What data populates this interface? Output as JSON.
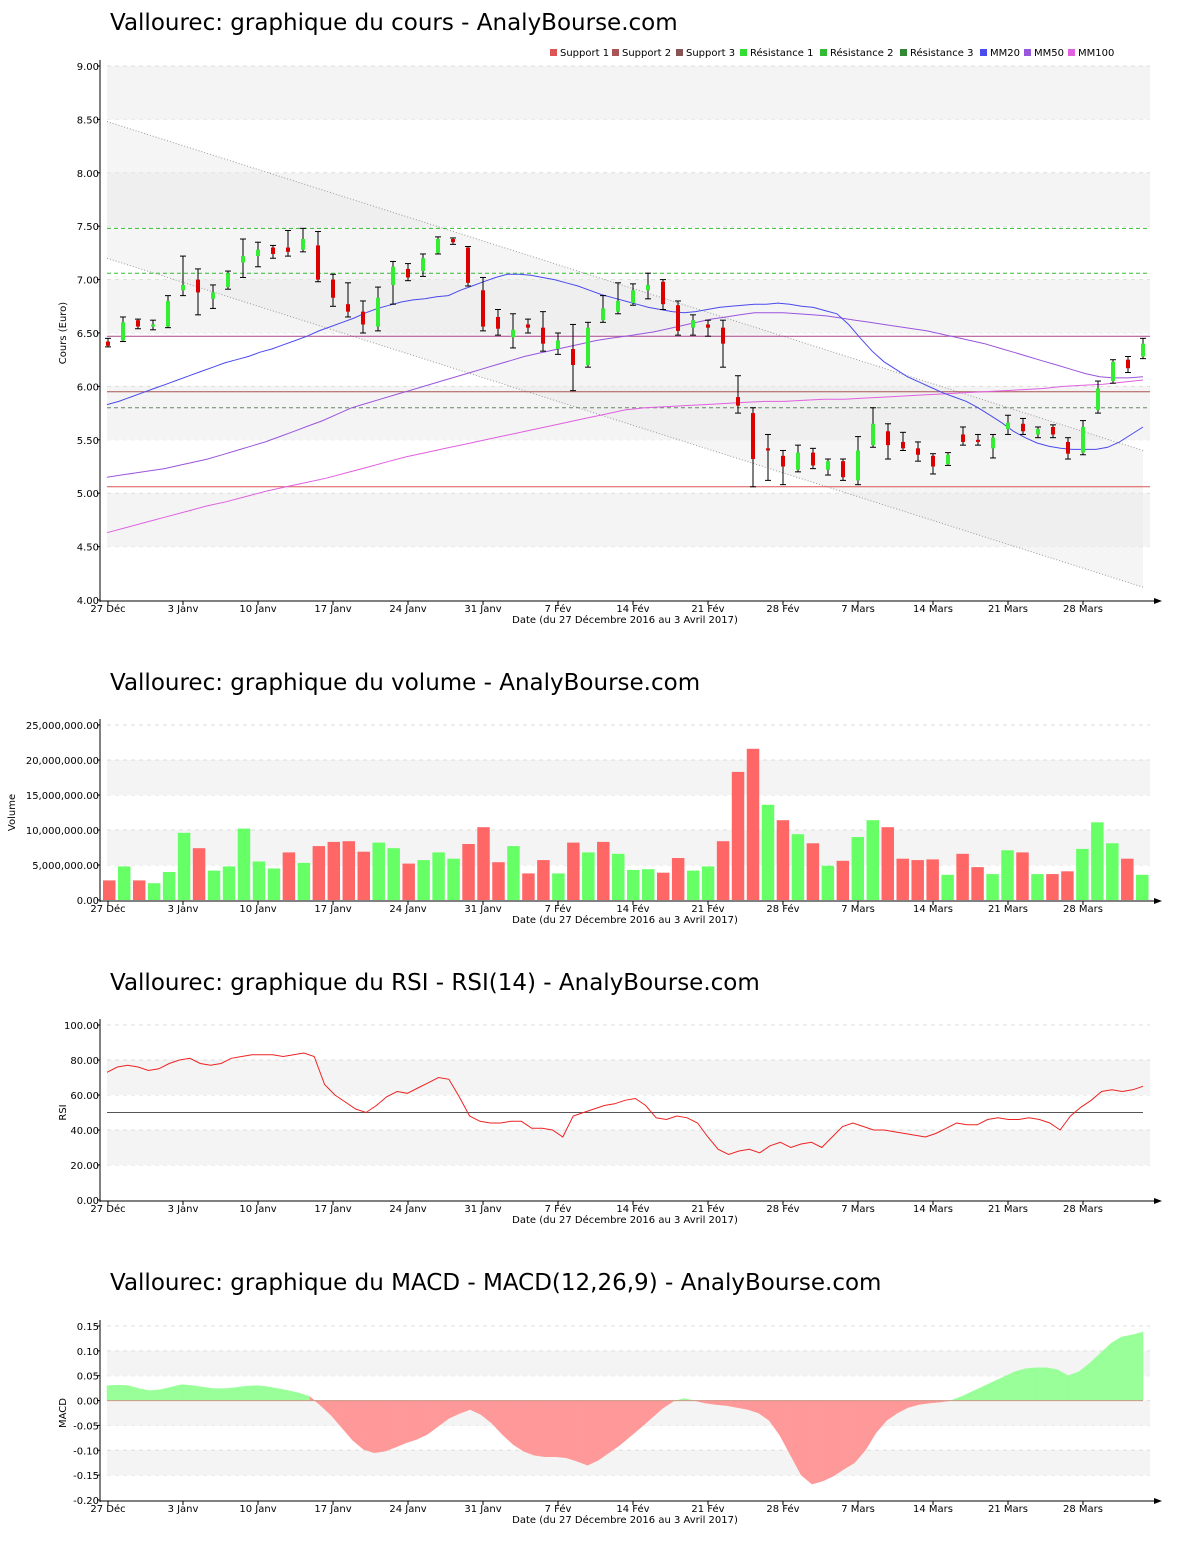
{
  "titles": {
    "price": "Vallourec: graphique du cours - AnalyBourse.com",
    "volume": "Vallourec: graphique du volume - AnalyBourse.com",
    "rsi": "Vallourec: graphique du RSI - RSI(14) - AnalyBourse.com",
    "macd": "Vallourec: graphique du MACD - MACD(12,26,9) - AnalyBourse.com"
  },
  "xlabel": "Date (du 27 Décembre 2016 au 3 Avril 2017)",
  "x_ticks": [
    "27 Déc",
    "3 Janv",
    "10 Janv",
    "17 Janv",
    "24 Janv",
    "31 Janv",
    "7 Fév",
    "14 Fév",
    "21 Fév",
    "28 Fév",
    "7 Mars",
    "14 Mars",
    "21 Mars",
    "28 Mars"
  ],
  "colors": {
    "up": "#33ee33",
    "down": "#dd0000",
    "vol_up": "#66ff66",
    "vol_down": "#ff6666",
    "mm20": "#4a4aee",
    "mm50": "#9a55dd",
    "mm100": "#e060e0"
  },
  "chart_data": [
    {
      "type": "candlestick",
      "title": "Vallourec: graphique du cours - AnalyBourse.com",
      "ylabel": "Cours (Euro)",
      "ylim": [
        4.0,
        9.0
      ],
      "y_ticks": [
        "4.00",
        "4.50",
        "5.00",
        "5.50",
        "6.00",
        "6.50",
        "7.00",
        "7.50",
        "8.00",
        "8.50",
        "9.00"
      ],
      "legend": [
        "Support 1",
        "Support 2",
        "Support 3",
        "Résistance 1",
        "Résistance 2",
        "Résistance 3",
        "MM20",
        "MM50",
        "MM100"
      ],
      "legend_colors": [
        "#dd5555",
        "#aa5555",
        "#885555",
        "#33dd33",
        "#33bb33",
        "#338833",
        "#4a4aee",
        "#9a55dd",
        "#e060e0"
      ],
      "legend_placement": "top-right",
      "levels": {
        "support1": 5.06,
        "support2": 5.95,
        "support3": 6.47,
        "resistance1": 7.48,
        "resistance2": 7.06,
        "resistance3": 5.8
      },
      "candles": [
        {
          "o": 6.42,
          "h": 6.45,
          "l": 6.37,
          "c": 6.38
        },
        {
          "o": 6.43,
          "h": 6.65,
          "l": 6.42,
          "c": 6.6
        },
        {
          "o": 6.62,
          "h": 6.63,
          "l": 6.54,
          "c": 6.56
        },
        {
          "o": 6.56,
          "h": 6.62,
          "l": 6.53,
          "c": 6.58
        },
        {
          "o": 6.56,
          "h": 6.85,
          "l": 6.55,
          "c": 6.8
        },
        {
          "o": 6.9,
          "h": 7.22,
          "l": 6.85,
          "c": 6.95
        },
        {
          "o": 7.0,
          "h": 7.1,
          "l": 6.67,
          "c": 6.88
        },
        {
          "o": 6.82,
          "h": 6.95,
          "l": 6.73,
          "c": 6.88
        },
        {
          "o": 6.93,
          "h": 7.08,
          "l": 6.91,
          "c": 7.06
        },
        {
          "o": 7.16,
          "h": 7.38,
          "l": 7.02,
          "c": 7.22
        },
        {
          "o": 7.22,
          "h": 7.35,
          "l": 7.12,
          "c": 7.28
        },
        {
          "o": 7.3,
          "h": 7.32,
          "l": 7.2,
          "c": 7.24
        },
        {
          "o": 7.3,
          "h": 7.46,
          "l": 7.22,
          "c": 7.26
        },
        {
          "o": 7.28,
          "h": 7.48,
          "l": 7.26,
          "c": 7.38
        },
        {
          "o": 7.32,
          "h": 7.45,
          "l": 6.98,
          "c": 7.0
        },
        {
          "o": 7.0,
          "h": 7.05,
          "l": 6.75,
          "c": 6.83
        },
        {
          "o": 6.77,
          "h": 6.97,
          "l": 6.65,
          "c": 6.7
        },
        {
          "o": 6.7,
          "h": 6.8,
          "l": 6.5,
          "c": 6.58
        },
        {
          "o": 6.56,
          "h": 6.93,
          "l": 6.52,
          "c": 6.83
        },
        {
          "o": 6.95,
          "h": 7.17,
          "l": 6.77,
          "c": 7.12
        },
        {
          "o": 7.1,
          "h": 7.15,
          "l": 6.99,
          "c": 7.02
        },
        {
          "o": 7.08,
          "h": 7.24,
          "l": 7.03,
          "c": 7.2
        },
        {
          "o": 7.25,
          "h": 7.4,
          "l": 7.24,
          "c": 7.38
        },
        {
          "o": 7.38,
          "h": 7.39,
          "l": 7.33,
          "c": 7.35
        },
        {
          "o": 7.3,
          "h": 7.31,
          "l": 6.94,
          "c": 6.97
        },
        {
          "o": 6.9,
          "h": 7.02,
          "l": 6.52,
          "c": 6.56
        },
        {
          "o": 6.65,
          "h": 6.72,
          "l": 6.48,
          "c": 6.54
        },
        {
          "o": 6.46,
          "h": 6.68,
          "l": 6.36,
          "c": 6.53
        },
        {
          "o": 6.58,
          "h": 6.63,
          "l": 6.5,
          "c": 6.55
        },
        {
          "o": 6.55,
          "h": 6.7,
          "l": 6.33,
          "c": 6.4
        },
        {
          "o": 6.35,
          "h": 6.5,
          "l": 6.3,
          "c": 6.43
        },
        {
          "o": 6.35,
          "h": 6.58,
          "l": 5.96,
          "c": 6.2
        },
        {
          "o": 6.2,
          "h": 6.6,
          "l": 6.18,
          "c": 6.55
        },
        {
          "o": 6.62,
          "h": 6.85,
          "l": 6.6,
          "c": 6.73
        },
        {
          "o": 6.7,
          "h": 6.97,
          "l": 6.68,
          "c": 6.8
        },
        {
          "o": 6.78,
          "h": 6.96,
          "l": 6.76,
          "c": 6.9
        },
        {
          "o": 6.9,
          "h": 7.06,
          "l": 6.82,
          "c": 6.95
        },
        {
          "o": 6.98,
          "h": 7.0,
          "l": 6.72,
          "c": 6.77
        },
        {
          "o": 6.76,
          "h": 6.8,
          "l": 6.48,
          "c": 6.52
        },
        {
          "o": 6.55,
          "h": 6.67,
          "l": 6.48,
          "c": 6.62
        },
        {
          "o": 6.58,
          "h": 6.62,
          "l": 6.47,
          "c": 6.55
        },
        {
          "o": 6.55,
          "h": 6.62,
          "l": 6.18,
          "c": 6.4
        },
        {
          "o": 5.9,
          "h": 6.1,
          "l": 5.75,
          "c": 5.82
        },
        {
          "o": 5.75,
          "h": 5.8,
          "l": 5.06,
          "c": 5.32
        },
        {
          "o": 5.42,
          "h": 5.55,
          "l": 5.12,
          "c": 5.4
        },
        {
          "o": 5.35,
          "h": 5.4,
          "l": 5.08,
          "c": 5.25
        },
        {
          "o": 5.22,
          "h": 5.45,
          "l": 5.2,
          "c": 5.38
        },
        {
          "o": 5.38,
          "h": 5.42,
          "l": 5.23,
          "c": 5.26
        },
        {
          "o": 5.22,
          "h": 5.32,
          "l": 5.17,
          "c": 5.3
        },
        {
          "o": 5.3,
          "h": 5.32,
          "l": 5.12,
          "c": 5.15
        },
        {
          "o": 5.12,
          "h": 5.53,
          "l": 5.08,
          "c": 5.4
        },
        {
          "o": 5.45,
          "h": 5.8,
          "l": 5.43,
          "c": 5.65
        },
        {
          "o": 5.58,
          "h": 5.65,
          "l": 5.32,
          "c": 5.45
        },
        {
          "o": 5.48,
          "h": 5.57,
          "l": 5.4,
          "c": 5.42
        },
        {
          "o": 5.42,
          "h": 5.48,
          "l": 5.3,
          "c": 5.36
        },
        {
          "o": 5.35,
          "h": 5.37,
          "l": 5.18,
          "c": 5.25
        },
        {
          "o": 5.27,
          "h": 5.38,
          "l": 5.26,
          "c": 5.36
        },
        {
          "o": 5.55,
          "h": 5.62,
          "l": 5.45,
          "c": 5.48
        },
        {
          "o": 5.5,
          "h": 5.55,
          "l": 5.45,
          "c": 5.48
        },
        {
          "o": 5.42,
          "h": 5.55,
          "l": 5.33,
          "c": 5.52
        },
        {
          "o": 5.6,
          "h": 5.73,
          "l": 5.55,
          "c": 5.66
        },
        {
          "o": 5.65,
          "h": 5.7,
          "l": 5.55,
          "c": 5.58
        },
        {
          "o": 5.55,
          "h": 5.62,
          "l": 5.52,
          "c": 5.6
        },
        {
          "o": 5.62,
          "h": 5.64,
          "l": 5.52,
          "c": 5.55
        },
        {
          "o": 5.48,
          "h": 5.52,
          "l": 5.32,
          "c": 5.37
        },
        {
          "o": 5.38,
          "h": 5.68,
          "l": 5.36,
          "c": 5.62
        },
        {
          "o": 5.78,
          "h": 6.05,
          "l": 5.75,
          "c": 5.98
        },
        {
          "o": 6.05,
          "h": 6.25,
          "l": 6.03,
          "c": 6.23
        },
        {
          "o": 6.25,
          "h": 6.28,
          "l": 6.13,
          "c": 6.17
        },
        {
          "o": 6.28,
          "h": 6.45,
          "l": 6.26,
          "c": 6.4
        }
      ],
      "ma": {
        "mm20": [
          5.83,
          5.86,
          5.9,
          5.94,
          5.98,
          6.02,
          6.06,
          6.1,
          6.14,
          6.18,
          6.22,
          6.25,
          6.28,
          6.32,
          6.35,
          6.39,
          6.43,
          6.47,
          6.52,
          6.56,
          6.6,
          6.64,
          6.69,
          6.73,
          6.76,
          6.79,
          6.81,
          6.82,
          6.84,
          6.85,
          6.9,
          6.94,
          6.98,
          7.02,
          7.05,
          7.05,
          7.04,
          7.02,
          7.0,
          6.97,
          6.94,
          6.9,
          6.86,
          6.83,
          6.8,
          6.77,
          6.74,
          6.72,
          6.7,
          6.69,
          6.7,
          6.72,
          6.74,
          6.75,
          6.76,
          6.77,
          6.77,
          6.78,
          6.77,
          6.75,
          6.74,
          6.71,
          6.68,
          6.58,
          6.45,
          6.33,
          6.23,
          6.16,
          6.09,
          6.04,
          5.99,
          5.94,
          5.9,
          5.86,
          5.8,
          5.73,
          5.66,
          5.58,
          5.52,
          5.47,
          5.44,
          5.42,
          5.41,
          5.41,
          5.41,
          5.43,
          5.48,
          5.55,
          5.62
        ],
        "mm50": [
          5.15,
          5.17,
          5.19,
          5.21,
          5.23,
          5.26,
          5.29,
          5.32,
          5.36,
          5.4,
          5.44,
          5.48,
          5.53,
          5.58,
          5.63,
          5.68,
          5.74,
          5.8,
          5.84,
          5.88,
          5.92,
          5.96,
          6.0,
          6.04,
          6.08,
          6.12,
          6.16,
          6.2,
          6.24,
          6.28,
          6.31,
          6.34,
          6.37,
          6.4,
          6.43,
          6.45,
          6.47,
          6.49,
          6.51,
          6.54,
          6.57,
          6.6,
          6.63,
          6.65,
          6.67,
          6.69,
          6.69,
          6.69,
          6.68,
          6.67,
          6.66,
          6.64,
          6.62,
          6.6,
          6.58,
          6.56,
          6.54,
          6.52,
          6.49,
          6.46,
          6.43,
          6.4,
          6.36,
          6.32,
          6.28,
          6.24,
          6.2,
          6.16,
          6.12,
          6.09,
          6.08,
          6.08,
          6.09
        ],
        "mm100": [
          4.63,
          4.68,
          4.73,
          4.78,
          4.83,
          4.88,
          4.92,
          4.97,
          5.02,
          5.06,
          5.1,
          5.14,
          5.19,
          5.24,
          5.29,
          5.34,
          5.38,
          5.42,
          5.46,
          5.5,
          5.54,
          5.58,
          5.62,
          5.66,
          5.7,
          5.74,
          5.78,
          5.8,
          5.81,
          5.82,
          5.83,
          5.84,
          5.85,
          5.86,
          5.86,
          5.87,
          5.88,
          5.88,
          5.89,
          5.9,
          5.91,
          5.92,
          5.93,
          5.94,
          5.95,
          5.96,
          5.97,
          5.98,
          6.0,
          6.01,
          6.02,
          6.04,
          6.06
        ]
      },
      "trend_channel": {
        "upper": {
          "start": 8.48,
          "end": 5.4
        },
        "lower": {
          "start": 7.2,
          "end": 4.12
        }
      }
    },
    {
      "type": "bar",
      "title": "Vallourec: graphique du volume - AnalyBourse.com",
      "ylabel": "Volume",
      "ylim": [
        0,
        25000000
      ],
      "y_ticks": [
        "0.00",
        "5,000,000.00",
        "10,000,000.00",
        "15,000,000.00",
        "20,000,000.00",
        "25,000,000.00"
      ],
      "values": [
        2800000,
        4800000,
        2800000,
        2400000,
        4000000,
        9600000,
        7400000,
        4200000,
        4800000,
        10200000,
        5500000,
        4500000,
        6800000,
        5300000,
        7700000,
        8300000,
        8400000,
        6900000,
        8200000,
        7400000,
        5200000,
        5700000,
        6800000,
        5900000,
        8000000,
        10400000,
        5400000,
        7700000,
        3800000,
        5700000,
        3800000,
        8200000,
        6800000,
        8300000,
        6600000,
        4300000,
        4400000,
        3900000,
        6000000,
        4200000,
        4800000,
        8400000,
        18300000,
        21600000,
        13600000,
        11400000,
        9400000,
        8100000,
        4900000,
        5600000,
        9000000,
        11400000,
        10400000,
        5900000,
        5700000,
        5800000,
        3600000,
        6600000,
        4700000,
        3700000,
        7100000,
        6800000,
        3700000,
        3700000,
        4100000,
        7300000,
        11100000,
        8100000,
        5900000,
        3600000
      ],
      "up": [
        false,
        true,
        false,
        true,
        true,
        true,
        false,
        true,
        true,
        true,
        true,
        true,
        false,
        true,
        false,
        false,
        false,
        false,
        true,
        true,
        false,
        true,
        true,
        true,
        false,
        false,
        false,
        true,
        false,
        false,
        true,
        false,
        true,
        false,
        true,
        true,
        true,
        false,
        false,
        true,
        true,
        false,
        false,
        false,
        true,
        false,
        true,
        false,
        true,
        false,
        true,
        true,
        false,
        false,
        false,
        false,
        true,
        false,
        false,
        true,
        true,
        false,
        true,
        false,
        false,
        true,
        true,
        true,
        false,
        true
      ]
    },
    {
      "type": "line",
      "title": "Vallourec: graphique du RSI - RSI(14) - AnalyBourse.com",
      "ylabel": "RSI",
      "ylim": [
        0,
        100
      ],
      "y_ticks": [
        "0.00",
        "20.00",
        "40.00",
        "60.00",
        "80.00",
        "100.00"
      ],
      "reference_line": 50,
      "values": [
        73,
        76,
        77,
        76,
        74,
        75,
        78,
        80,
        81,
        78,
        77,
        78,
        81,
        82,
        83,
        83,
        83,
        82,
        83,
        84,
        82,
        66,
        60,
        56,
        52,
        50,
        54,
        59,
        62,
        61,
        64,
        67,
        70,
        69,
        59,
        48,
        45,
        44,
        44,
        45,
        45,
        41,
        41,
        40,
        36,
        48,
        50,
        52,
        54,
        55,
        57,
        58,
        54,
        47,
        46,
        48,
        47,
        44,
        36,
        29,
        26,
        28,
        29,
        27,
        31,
        33,
        30,
        32,
        33,
        30,
        36,
        42,
        44,
        42,
        40,
        40,
        39,
        38,
        37,
        36,
        38,
        41,
        44,
        43,
        43,
        46,
        47,
        46,
        46,
        47,
        46,
        44,
        40,
        48,
        53,
        57,
        62,
        63,
        62,
        63,
        65
      ]
    },
    {
      "type": "area",
      "title": "Vallourec: graphique du MACD - MACD(12,26,9) - AnalyBourse.com",
      "ylabel": "MACD",
      "ylim": [
        -0.2,
        0.15
      ],
      "y_ticks": [
        "-0.20",
        "-0.15",
        "-0.10",
        "-0.05",
        "0.00",
        "0.05",
        "0.10",
        "0.15"
      ],
      "values": [
        0.03,
        0.031,
        0.03,
        0.024,
        0.02,
        0.022,
        0.027,
        0.032,
        0.03,
        0.027,
        0.024,
        0.024,
        0.026,
        0.029,
        0.03,
        0.028,
        0.024,
        0.02,
        0.015,
        0.008,
        -0.01,
        -0.03,
        -0.055,
        -0.08,
        -0.098,
        -0.105,
        -0.102,
        -0.094,
        -0.085,
        -0.078,
        -0.068,
        -0.052,
        -0.036,
        -0.026,
        -0.018,
        -0.028,
        -0.045,
        -0.068,
        -0.088,
        -0.102,
        -0.11,
        -0.113,
        -0.113,
        -0.115,
        -0.122,
        -0.13,
        -0.12,
        -0.105,
        -0.09,
        -0.072,
        -0.054,
        -0.035,
        -0.016,
        -0.002,
        0.004,
        0.0,
        -0.005,
        -0.008,
        -0.01,
        -0.014,
        -0.018,
        -0.025,
        -0.04,
        -0.07,
        -0.11,
        -0.15,
        -0.168,
        -0.162,
        -0.152,
        -0.138,
        -0.125,
        -0.1,
        -0.065,
        -0.04,
        -0.025,
        -0.014,
        -0.008,
        -0.005,
        -0.003,
        0.0,
        0.008,
        0.018,
        0.028,
        0.038,
        0.048,
        0.058,
        0.064,
        0.066,
        0.066,
        0.062,
        0.05,
        0.058,
        0.075,
        0.095,
        0.115,
        0.128,
        0.132,
        0.138
      ]
    }
  ]
}
